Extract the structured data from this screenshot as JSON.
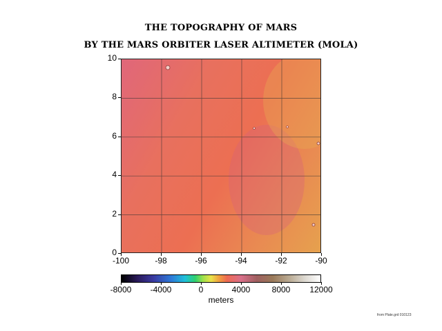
{
  "title_line1": "THE TOPOGRAPHY OF MARS",
  "title_line2": "BY THE MARS ORBITER LASER ALTIMETER (MOLA)",
  "map": {
    "x_ticks": [
      "-100",
      "-98",
      "-96",
      "-94",
      "-92",
      "-90"
    ],
    "y_ticks": [
      "0",
      "2",
      "4",
      "6",
      "8",
      "10"
    ],
    "x_range": [
      -100,
      -90
    ],
    "y_range": [
      0,
      10
    ],
    "grid": true,
    "colors": {
      "low_west": "#e0677a",
      "mid": "#ec6f52",
      "high_northeast": "#e6a14e",
      "grid": "#333333"
    }
  },
  "colorbar": {
    "ticks": [
      "-8000",
      "-4000",
      "0",
      "4000",
      "8000",
      "12000"
    ],
    "tick_values": [
      -8000,
      -4000,
      0,
      4000,
      8000,
      12000
    ],
    "range": [
      -8000,
      12000
    ],
    "units": "meters"
  },
  "credit": "from Plate.grd 010123"
}
